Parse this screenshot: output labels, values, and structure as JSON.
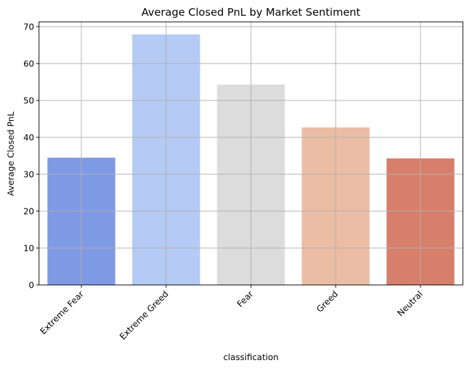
{
  "chart_data": {
    "type": "bar",
    "title": "Average Closed PnL by Market Sentiment",
    "xlabel": "classification",
    "ylabel": "Average Closed PnL",
    "categories": [
      "Extreme Fear",
      "Extreme Greed",
      "Fear",
      "Greed",
      "Neutral"
    ],
    "values": [
      34.5,
      67.9,
      54.3,
      42.7,
      34.3
    ],
    "colors": [
      "#7f9ae5",
      "#b5caf5",
      "#dcdcdc",
      "#ecbda5",
      "#d67f6b"
    ],
    "ylim": [
      0,
      71.3
    ],
    "yticks": [
      0,
      10,
      20,
      30,
      40,
      50,
      60,
      70
    ],
    "grid": true,
    "legend": "none"
  }
}
